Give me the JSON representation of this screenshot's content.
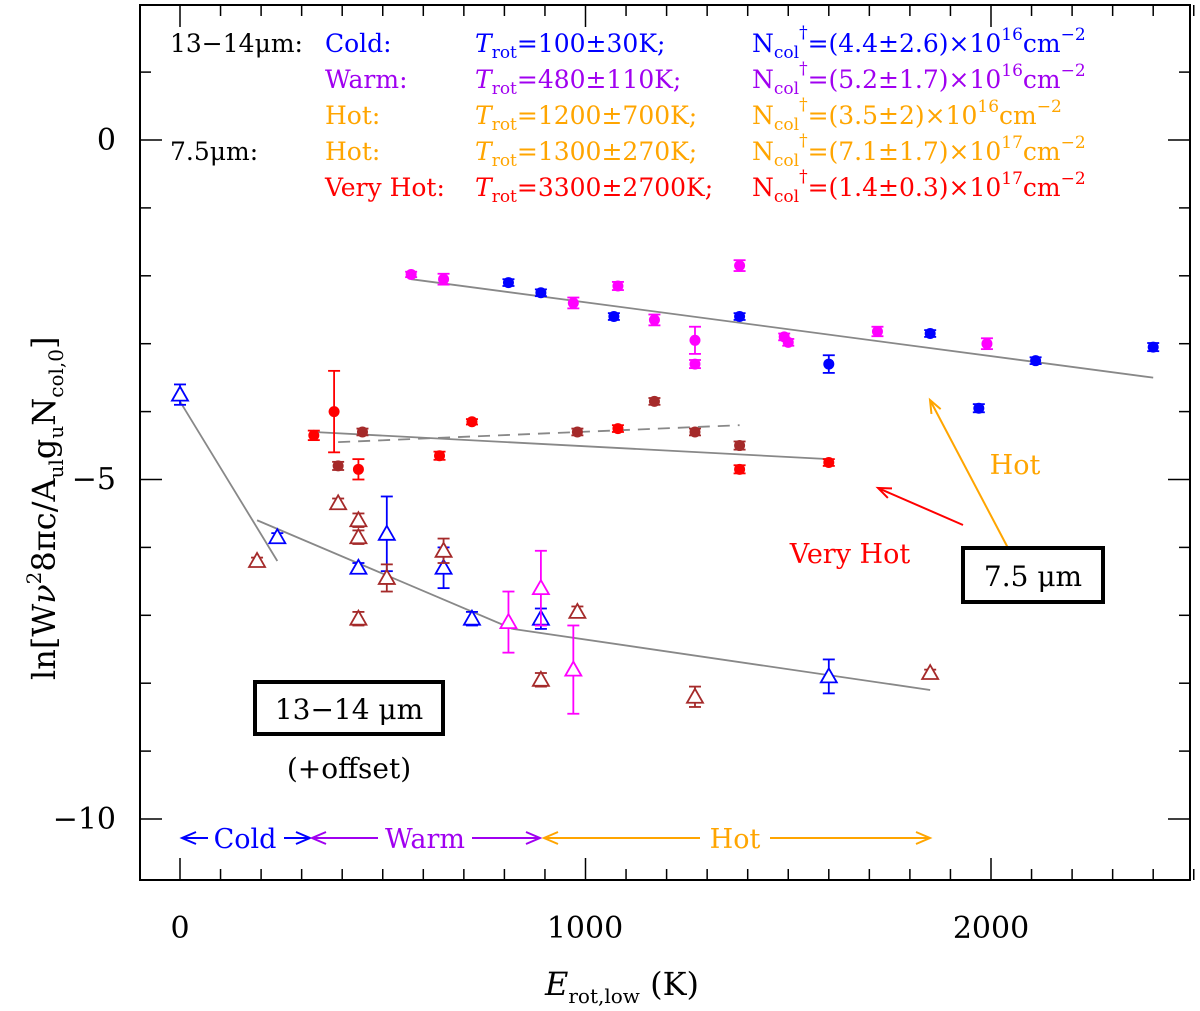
{
  "chart_data": {
    "type": "scatter",
    "xlabel_main": "E",
    "xlabel_sub": "rot,low",
    "xlabel_unit": " (K)",
    "ylabel_pre": "ln[W",
    "ylabel_nu": "ν",
    "ylabel_sup": "2",
    "ylabel_mid": "8πc/A",
    "ylabel_sub1": "ul",
    "ylabel_g": "g",
    "ylabel_sub2": "u",
    "ylabel_N": "N",
    "ylabel_sub3": "col,0",
    "ylabel_post": "]",
    "xlim": [
      -100,
      2500
    ],
    "ylim": [
      -11,
      2
    ],
    "xticks": [
      0,
      1000,
      2000
    ],
    "yticks": [
      0,
      -5,
      -10
    ],
    "xtick_labels": [
      "0",
      "1000",
      "2000"
    ],
    "ytick_labels": [
      "0",
      "−5",
      "−10"
    ],
    "colors": {
      "cold": "#0000ff",
      "warm": "#a000f0",
      "hot": "#ffa500",
      "very_hot": "#ff0000",
      "magenta": "#ff00ff",
      "brown": "#a52a2a",
      "dark_red": "#a52a2a",
      "fit": "#888888"
    },
    "legend": {
      "group_label_13": "13−14μm:",
      "group_label_75": "7.5μm:",
      "rows": [
        {
          "name": "Cold:",
          "temp": "=100±30K;",
          "ncol": "=(4.4±2.6)×10",
          "exp": "16",
          "unit": "cm",
          "uexp": "−2",
          "color": "#0000ff"
        },
        {
          "name": "Warm:",
          "temp": "=480±110K;",
          "ncol": "=(5.2±1.7)×10",
          "exp": "16",
          "unit": "cm",
          "uexp": "−2",
          "color": "#a000f0"
        },
        {
          "name": "Hot:",
          "temp": "=1200±700K;",
          "ncol": "=(3.5±2)×10",
          "exp": "16",
          "unit": "cm",
          "uexp": "−2",
          "color": "#ffa500"
        },
        {
          "name": "Hot:",
          "temp": "=1300±270K;",
          "ncol": "=(7.1±1.7)×10",
          "exp": "17",
          "unit": "cm",
          "uexp": "−2",
          "color": "#ffa500"
        },
        {
          "name": "Very Hot:",
          "temp": "=3300±2700K;",
          "ncol": "=(1.4±0.3)×10",
          "exp": "17",
          "unit": "cm",
          "uexp": "−2",
          "color": "#ff0000"
        }
      ],
      "trot_T": "T",
      "trot_sub": "rot",
      "ncol_N": "N",
      "ncol_sub": "col",
      "ncol_sup": "†"
    },
    "annotations": {
      "box_75": "7.5 μm",
      "box_13": "13−14 μm",
      "offset": "(+offset)",
      "hot": "Hot",
      "very_hot": "Very Hot",
      "range_cold": "Cold",
      "range_warm": "Warm",
      "range_hot": "Hot"
    },
    "series": [
      {
        "id": "blue-dots",
        "marker": "dot",
        "color": "#0000ff",
        "points": [
          [
            810,
            -2.1,
            0.05
          ],
          [
            890,
            -2.25,
            0.05
          ],
          [
            1070,
            -2.6,
            0.05
          ],
          [
            1380,
            -2.6,
            0.05
          ],
          [
            1600,
            -3.3,
            0.13
          ],
          [
            1850,
            -2.85,
            0.05
          ],
          [
            1970,
            -3.95,
            0.06
          ],
          [
            2110,
            -3.25,
            0.05
          ],
          [
            2400,
            -3.05,
            0.06
          ]
        ]
      },
      {
        "id": "magenta-dots",
        "marker": "dot",
        "color": "#ff00ff",
        "points": [
          [
            570,
            -1.98,
            0.04
          ],
          [
            650,
            -2.05,
            0.08
          ],
          [
            970,
            -2.4,
            0.08
          ],
          [
            1080,
            -2.15,
            0.06
          ],
          [
            1170,
            -2.65,
            0.08
          ],
          [
            1270,
            -2.95,
            0.2
          ],
          [
            1270,
            -3.3,
            0.06
          ],
          [
            1380,
            -1.85,
            0.08
          ],
          [
            1490,
            -2.9,
            0.05
          ],
          [
            1500,
            -2.98,
            0.05
          ],
          [
            1720,
            -2.82,
            0.07
          ],
          [
            1990,
            -3.0,
            0.08
          ]
        ]
      },
      {
        "id": "red-dots",
        "marker": "dot",
        "color": "#ff0000",
        "points": [
          [
            330,
            -4.35,
            0.07
          ],
          [
            380,
            -4.0,
            0.6
          ],
          [
            440,
            -4.85,
            0.15
          ],
          [
            640,
            -4.65,
            0.06
          ],
          [
            720,
            -4.15,
            0.04
          ],
          [
            1080,
            -4.25,
            0.05
          ],
          [
            1380,
            -4.85,
            0.06
          ],
          [
            1600,
            -4.75,
            0.05
          ]
        ]
      },
      {
        "id": "brown-dots",
        "marker": "dot",
        "color": "#a52a2a",
        "points": [
          [
            390,
            -4.8,
            0.06
          ],
          [
            450,
            -4.3,
            0.05
          ],
          [
            980,
            -4.3,
            0.05
          ],
          [
            1170,
            -3.85,
            0.05
          ],
          [
            1270,
            -4.3,
            0.05
          ],
          [
            1380,
            -4.5,
            0.06
          ]
        ]
      },
      {
        "id": "blue-triangles",
        "marker": "triangle",
        "color": "#0000ff",
        "points": [
          [
            0,
            -3.75,
            0.15
          ],
          [
            240,
            -5.85,
            0.06
          ],
          [
            440,
            -6.3,
            0.07
          ],
          [
            510,
            -5.8,
            0.55
          ],
          [
            650,
            -6.3,
            0.3
          ],
          [
            720,
            -7.05,
            0.1
          ],
          [
            890,
            -7.05,
            0.15
          ],
          [
            1600,
            -7.9,
            0.25
          ]
        ]
      },
      {
        "id": "brown-triangles",
        "marker": "triangle",
        "color": "#a52a2a",
        "points": [
          [
            190,
            -6.2,
            0.05
          ],
          [
            390,
            -5.35,
            0.07
          ],
          [
            440,
            -5.6,
            0.1
          ],
          [
            440,
            -5.85,
            0.1
          ],
          [
            440,
            -7.05,
            0.1
          ],
          [
            510,
            -6.45,
            0.2
          ],
          [
            650,
            -6.05,
            0.18
          ],
          [
            890,
            -7.95,
            0.1
          ],
          [
            980,
            -6.95,
            0.08
          ],
          [
            1270,
            -8.2,
            0.15
          ],
          [
            1850,
            -7.85,
            0.05
          ]
        ]
      },
      {
        "id": "magenta-triangles",
        "marker": "triangle",
        "color": "#ff00ff",
        "points": [
          [
            810,
            -7.1,
            0.45
          ],
          [
            890,
            -6.6,
            0.55
          ],
          [
            970,
            -7.8,
            0.65
          ]
        ]
      }
    ],
    "fit_lines": [
      {
        "id": "fit-75-hot",
        "dash": false,
        "x": [
          570,
          2400
        ],
        "y": [
          -2.05,
          -3.5
        ]
      },
      {
        "id": "fit-75-veryhot",
        "dash": false,
        "x": [
          330,
          1600
        ],
        "y": [
          -4.3,
          -4.7
        ]
      },
      {
        "id": "fit-75-dashed",
        "dash": true,
        "x": [
          390,
          1380
        ],
        "y": [
          -4.45,
          -4.2
        ]
      },
      {
        "id": "fit-13-cold",
        "dash": false,
        "x": [
          0,
          240
        ],
        "y": [
          -3.85,
          -6.2
        ]
      },
      {
        "id": "fit-13-warm",
        "dash": false,
        "x": [
          190,
          820
        ],
        "y": [
          -5.6,
          -7.2
        ]
      },
      {
        "id": "fit-13-hot",
        "dash": false,
        "x": [
          820,
          1850
        ],
        "y": [
          -7.2,
          -8.1
        ]
      }
    ]
  }
}
